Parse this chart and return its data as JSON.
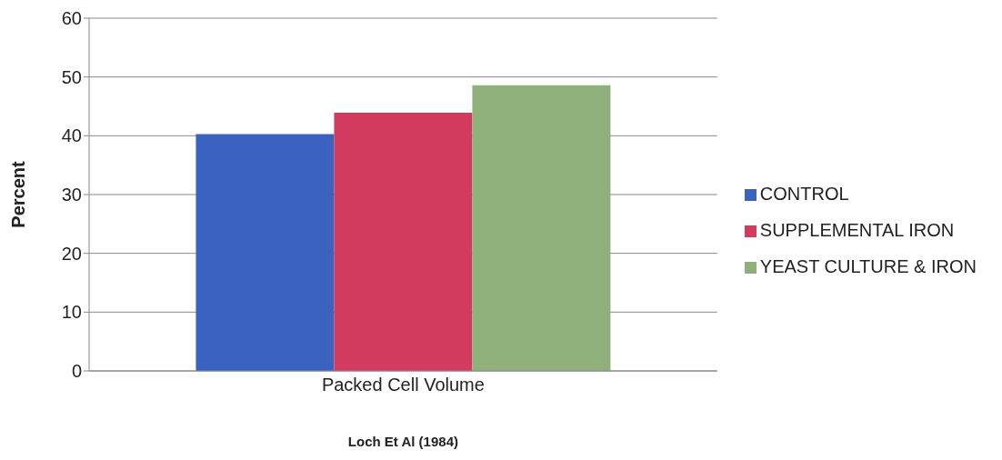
{
  "chart_data": {
    "type": "bar",
    "xlabel": "Loch Et Al (1984)",
    "ylabel": "Percent",
    "categories": [
      "Packed Cell Volume"
    ],
    "series": [
      {
        "name": "CONTROL",
        "color": "#3a62c0",
        "values": [
          40.3
        ]
      },
      {
        "name": "SUPPLEMENTAL IRON",
        "color": "#d23a5e",
        "values": [
          43.9
        ]
      },
      {
        "name": "YEAST CULTURE & IRON",
        "color": "#8fb07a",
        "values": [
          48.6
        ]
      }
    ],
    "ylim": [
      0,
      60
    ],
    "yticks": [
      0,
      10,
      20,
      30,
      40,
      50,
      60
    ],
    "grid": "y",
    "legend": "right"
  }
}
